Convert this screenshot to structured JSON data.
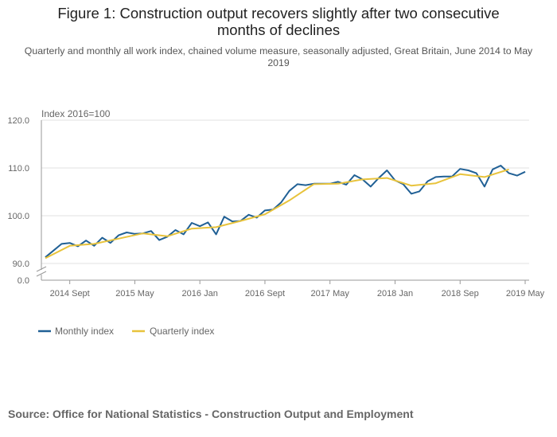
{
  "title": "Figure 1: Construction output recovers slightly after two consecutive months of declines",
  "subtitle": "Quarterly and monthly all work index, chained volume measure, seasonally adjusted, Great Britain, June 2014 to May 2019",
  "source": "Source: Office for National Statistics - Construction Output and Employment",
  "chart_data": {
    "type": "line",
    "ylabel": "Index 2016=100",
    "ylim": [
      90,
      120
    ],
    "y_axis_break": true,
    "y_ticks": [
      "0.0",
      "90.0",
      "100.0",
      "110.0",
      "120.0"
    ],
    "x_ticks": [
      "2014 Sept",
      "2015 May",
      "2016 Jan",
      "2016 Sept",
      "2017 May",
      "2018 Jan",
      "2018 Sep",
      "2019 May"
    ],
    "x_tick_months": [
      3,
      11,
      19,
      27,
      35,
      43,
      51,
      59
    ],
    "x_start": "2014-06",
    "x_end": "2019-05",
    "grid": true,
    "legend_position": "bottom-left",
    "series": [
      {
        "name": "Monthly index",
        "color": "#206095",
        "step_months": 1,
        "start": "2014-06",
        "values": [
          91.3,
          92.7,
          94.1,
          94.3,
          93.6,
          94.8,
          93.7,
          95.4,
          94.3,
          95.9,
          96.5,
          96.2,
          96.3,
          96.8,
          94.9,
          95.6,
          97.0,
          96.1,
          98.5,
          97.8,
          98.6,
          96.1,
          99.8,
          98.8,
          98.9,
          100.2,
          99.6,
          101.1,
          101.3,
          102.8,
          105.2,
          106.6,
          106.4,
          106.7,
          106.7,
          106.7,
          107.1,
          106.5,
          108.5,
          107.6,
          106.1,
          107.9,
          109.5,
          107.4,
          106.6,
          104.6,
          105.1,
          107.2,
          108.1,
          108.2,
          108.2,
          109.8,
          109.5,
          108.9,
          106.1,
          109.7,
          110.5,
          108.9,
          108.4,
          109.2
        ]
      },
      {
        "name": "Quarterly index",
        "color": "#e8c33c",
        "step_months": 3,
        "start": "2014-06",
        "values": [
          91.1,
          93.7,
          94.1,
          95.2,
          96.3,
          95.7,
          97.3,
          97.6,
          98.9,
          100.3,
          103.2,
          106.6,
          106.7,
          107.6,
          107.9,
          106.3,
          106.8,
          108.7,
          108.1,
          109.7
        ]
      }
    ]
  }
}
